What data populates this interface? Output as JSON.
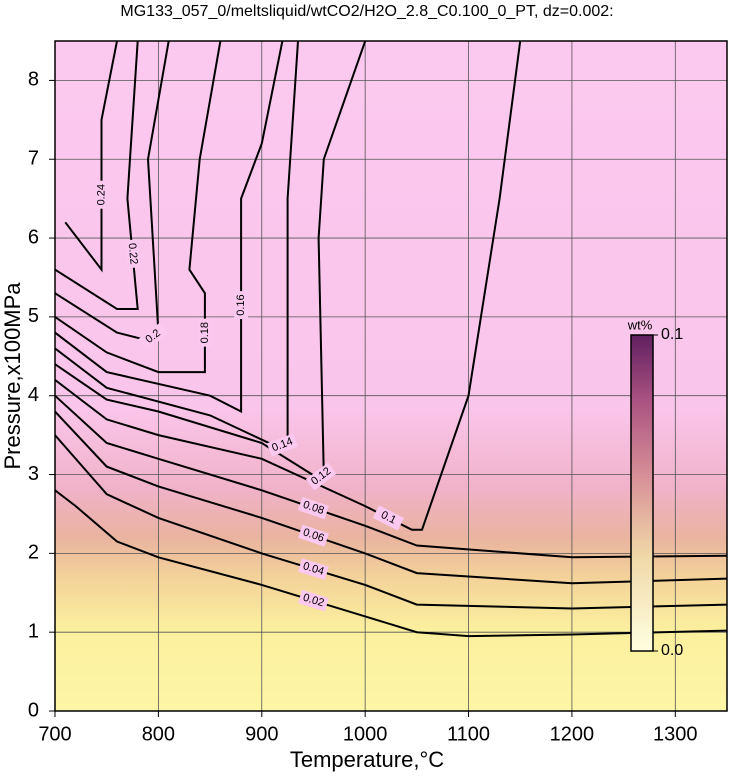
{
  "chart_data": {
    "type": "contour",
    "title": "MG133_057_0/meltsliquid/wtCO2/H2O_2.8_C0.100_0_PT, dz=0.002:",
    "x_label": "Temperature,°C",
    "y_label": "Pressure,x100MPa",
    "xlim": [
      700,
      1350
    ],
    "ylim": [
      0,
      8.5
    ],
    "xticks": [
      700,
      800,
      900,
      1000,
      1100,
      1200,
      1300
    ],
    "yticks": [
      0,
      1,
      2,
      3,
      4,
      5,
      6,
      7,
      8
    ],
    "grid": true,
    "line_color": "#000000",
    "colorbar": {
      "label": "wt%",
      "clim": [
        0,
        0.1
      ],
      "ticks": [
        {
          "value": 0,
          "label": "0.0"
        },
        0.1
      ]
    },
    "series": [
      {
        "name": "0.02",
        "x": [
          700,
          720,
          760,
          800,
          900,
          1000,
          1050,
          1100,
          1200,
          1350
        ],
        "y": [
          2.8,
          2.6,
          2.15,
          1.95,
          1.6,
          1.2,
          1.0,
          0.95,
          0.97,
          1.02
        ]
      },
      {
        "name": "0.04",
        "x": [
          700,
          750,
          800,
          900,
          1000,
          1050,
          1200,
          1350
        ],
        "y": [
          3.5,
          2.75,
          2.45,
          2.0,
          1.6,
          1.35,
          1.3,
          1.35
        ]
      },
      {
        "name": "0.06",
        "x": [
          700,
          750,
          800,
          900,
          1000,
          1050,
          1200,
          1350
        ],
        "y": [
          3.8,
          3.1,
          2.85,
          2.45,
          2.0,
          1.75,
          1.62,
          1.68
        ]
      },
      {
        "name": "0.08",
        "x": [
          700,
          750,
          800,
          900,
          1000,
          1050,
          1200,
          1350
        ],
        "y": [
          4.0,
          3.4,
          3.2,
          2.8,
          2.35,
          2.1,
          1.95,
          1.97
        ]
      },
      {
        "name": "0.1",
        "x": [
          700,
          750,
          800,
          900,
          1000,
          1045,
          1055,
          1100,
          1130,
          1150
        ],
        "y": [
          4.2,
          3.7,
          3.5,
          3.2,
          2.6,
          2.3,
          2.3,
          4.0,
          6.5,
          8.5
        ]
      },
      {
        "name": "0.12",
        "x": [
          700,
          750,
          800,
          900,
          955,
          960,
          955,
          960,
          1000
        ],
        "y": [
          4.4,
          3.95,
          3.8,
          3.4,
          2.95,
          3.0,
          6.0,
          7.0,
          8.5
        ]
      },
      {
        "name": "0.14",
        "x": [
          700,
          750,
          850,
          915,
          925,
          925,
          935
        ],
        "y": [
          4.6,
          4.1,
          3.75,
          3.35,
          3.4,
          6.5,
          8.5
        ]
      },
      {
        "name": "0.16",
        "x": [
          700,
          750,
          850,
          880,
          880,
          900,
          920
        ],
        "y": [
          4.8,
          4.3,
          4.0,
          3.8,
          6.5,
          7.2,
          8.5
        ]
      },
      {
        "name": "0.18",
        "x": [
          700,
          750,
          800,
          845,
          845,
          830,
          840,
          860
        ],
        "y": [
          5.0,
          4.55,
          4.3,
          4.3,
          5.3,
          5.6,
          7.0,
          8.5
        ]
      },
      {
        "name": "0.2",
        "x": [
          700,
          760,
          790,
          800,
          790,
          810
        ],
        "y": [
          5.3,
          4.8,
          4.7,
          4.8,
          7.0,
          8.5
        ]
      },
      {
        "name": "0.22",
        "x": [
          700,
          760,
          780,
          770,
          780
        ],
        "y": [
          5.6,
          5.1,
          5.1,
          6.5,
          8.5
        ]
      },
      {
        "name": "0.24",
        "x": [
          710,
          745,
          745,
          760
        ],
        "y": [
          6.2,
          5.6,
          7.5,
          8.5
        ]
      }
    ]
  }
}
